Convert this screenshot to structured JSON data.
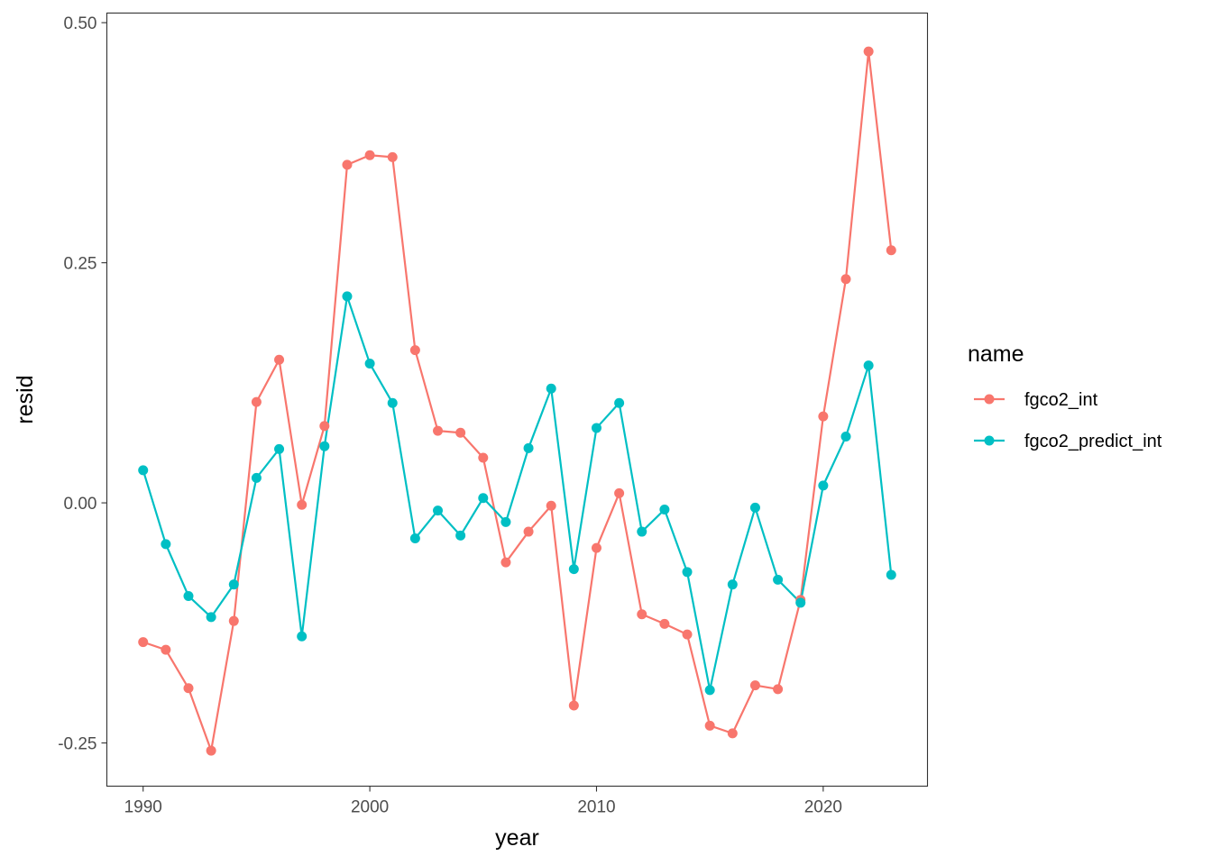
{
  "chart_data": {
    "type": "line",
    "xlabel": "year",
    "ylabel": "resid",
    "xlim": [
      1988.4,
      2024.6
    ],
    "ylim": [
      -0.295,
      0.51
    ],
    "x_ticks": [
      1990,
      2000,
      2010,
      2020
    ],
    "y_ticks": [
      -0.25,
      0.0,
      0.25,
      0.5
    ],
    "y_tick_labels": [
      "-0.25",
      "0.00",
      "0.25",
      "0.50"
    ],
    "grid": false,
    "legend": {
      "title": "name",
      "position": "right"
    },
    "x": [
      1990,
      1991,
      1992,
      1993,
      1994,
      1995,
      1996,
      1997,
      1998,
      1999,
      2000,
      2001,
      2002,
      2003,
      2004,
      2005,
      2006,
      2007,
      2008,
      2009,
      2010,
      2011,
      2012,
      2013,
      2014,
      2015,
      2016,
      2017,
      2018,
      2019,
      2020,
      2021,
      2022,
      2023
    ],
    "series": [
      {
        "name": "fgco2_int",
        "color": "#F8766D",
        "values": [
          -0.145,
          -0.153,
          -0.193,
          -0.258,
          -0.123,
          0.105,
          0.149,
          -0.002,
          0.08,
          0.352,
          0.362,
          0.36,
          0.159,
          0.075,
          0.073,
          0.047,
          -0.062,
          -0.03,
          -0.003,
          -0.211,
          -0.047,
          0.01,
          -0.116,
          -0.126,
          -0.137,
          -0.232,
          -0.24,
          -0.19,
          -0.194,
          -0.101,
          0.09,
          0.233,
          0.47,
          0.263
        ]
      },
      {
        "name": "fgco2_predict_int",
        "color": "#00BFC4",
        "values": [
          0.034,
          -0.043,
          -0.097,
          -0.119,
          -0.085,
          0.026,
          0.056,
          -0.139,
          0.059,
          0.215,
          0.145,
          0.104,
          -0.037,
          -0.008,
          -0.034,
          0.005,
          -0.02,
          0.057,
          0.119,
          -0.069,
          0.078,
          0.104,
          -0.03,
          -0.007,
          -0.072,
          -0.195,
          -0.085,
          -0.005,
          -0.08,
          -0.104,
          0.018,
          0.069,
          0.143,
          -0.075
        ]
      }
    ]
  }
}
